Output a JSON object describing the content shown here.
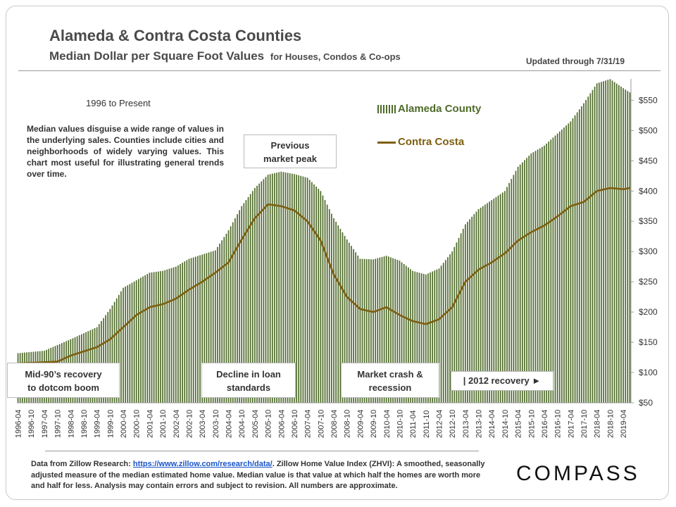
{
  "header": {
    "title": "Alameda & Contra Costa Counties",
    "subtitle": "Median Dollar per Square Foot Values",
    "subtitle_small": "for Houses, Condos & Co-ops",
    "updated": "Updated through 7/31/19"
  },
  "annotations": {
    "period": "1996 to Present",
    "note": "Median values disguise a wide range of values in the underlying sales. Counties include cities and neighborhoods of widely varying values.  This chart most useful for illustrating general trends over time.",
    "previous_peak": [
      "Previous",
      "market peak"
    ],
    "mid90s": [
      "Mid-90’s recovery",
      "to dotcom boom"
    ],
    "decline": [
      "Decline in loan",
      "standards"
    ],
    "crash": [
      "Market crash &",
      "recession"
    ],
    "recovery": "| 2012 recovery ►"
  },
  "footer": {
    "source_prefix": "Data from Zillow Research: ",
    "source_link": "https://www.zillow.com/research/data/",
    "source_rest": ". Zillow Home Value Index (ZHVI): A smoothed, seasonally adjusted measure of the median estimated home value. Median value is that value at which half the homes are worth more and half for less. Analysis may contain errors and subject to revision. All numbers are approximate.",
    "logo": "COMPASS"
  },
  "colors": {
    "alameda": "#4f6b2a",
    "contra_costa": "#7d5f0f",
    "text": "#333333"
  },
  "chart_data": {
    "type": "bar",
    "x_start": "1996-04",
    "x_end": "2019-07",
    "frequency": "monthly",
    "tick_labels": [
      "1996-04",
      "1996-10",
      "1997-04",
      "1997-10",
      "1998-04",
      "1998-10",
      "1999-04",
      "1999-10",
      "2000-04",
      "2000-10",
      "2001-04",
      "2001-10",
      "2002-04",
      "2002-10",
      "2003-04",
      "2003-10",
      "2004-04",
      "2004-10",
      "2005-04",
      "2005-10",
      "2006-04",
      "2006-10",
      "2007-04",
      "2007-10",
      "2008-04",
      "2008-10",
      "2009-04",
      "2009-10",
      "2010-04",
      "2010-10",
      "2011-04",
      "2011-10",
      "2012-04",
      "2012-10",
      "2013-04",
      "2013-10",
      "2014-04",
      "2014-10",
      "2015-04",
      "2015-10",
      "2016-04",
      "2016-10",
      "2017-04",
      "2017-10",
      "2018-04",
      "2018-10",
      "2019-04"
    ],
    "ylim": [
      50,
      590
    ],
    "yticks": [
      50,
      100,
      150,
      200,
      250,
      300,
      350,
      400,
      450,
      500,
      550
    ],
    "y_tick_format": "$",
    "legend_position": "top-right",
    "series": [
      {
        "name": "Alameda County",
        "type": "bar",
        "anchors": [
          [
            "1996-04",
            132
          ],
          [
            "1997-04",
            136
          ],
          [
            "1998-04",
            155
          ],
          [
            "1999-04",
            175
          ],
          [
            "1999-10",
            205
          ],
          [
            "2000-04",
            240
          ],
          [
            "2001-04",
            265
          ],
          [
            "2001-10",
            268
          ],
          [
            "2002-04",
            275
          ],
          [
            "2002-10",
            288
          ],
          [
            "2003-04",
            295
          ],
          [
            "2003-10",
            302
          ],
          [
            "2004-04",
            335
          ],
          [
            "2004-10",
            375
          ],
          [
            "2005-04",
            405
          ],
          [
            "2005-10",
            427
          ],
          [
            "2006-04",
            432
          ],
          [
            "2006-10",
            428
          ],
          [
            "2007-04",
            422
          ],
          [
            "2007-10",
            400
          ],
          [
            "2008-04",
            355
          ],
          [
            "2008-10",
            320
          ],
          [
            "2009-04",
            288
          ],
          [
            "2009-10",
            287
          ],
          [
            "2010-04",
            293
          ],
          [
            "2010-10",
            285
          ],
          [
            "2011-04",
            268
          ],
          [
            "2011-10",
            262
          ],
          [
            "2012-04",
            272
          ],
          [
            "2012-10",
            300
          ],
          [
            "2013-04",
            345
          ],
          [
            "2013-10",
            370
          ],
          [
            "2014-04",
            385
          ],
          [
            "2014-10",
            400
          ],
          [
            "2015-04",
            440
          ],
          [
            "2015-10",
            462
          ],
          [
            "2016-04",
            475
          ],
          [
            "2016-10",
            495
          ],
          [
            "2017-04",
            515
          ],
          [
            "2017-10",
            545
          ],
          [
            "2018-04",
            578
          ],
          [
            "2018-10",
            585
          ],
          [
            "2019-04",
            570
          ],
          [
            "2019-07",
            563
          ]
        ]
      },
      {
        "name": "Contra Costa",
        "type": "line",
        "anchors": [
          [
            "1996-04",
            115
          ],
          [
            "1997-04",
            117
          ],
          [
            "1997-10",
            118
          ],
          [
            "1998-04",
            128
          ],
          [
            "1998-10",
            135
          ],
          [
            "1999-04",
            142
          ],
          [
            "1999-10",
            155
          ],
          [
            "2000-04",
            175
          ],
          [
            "2000-10",
            195
          ],
          [
            "2001-04",
            208
          ],
          [
            "2001-10",
            213
          ],
          [
            "2002-04",
            222
          ],
          [
            "2002-10",
            237
          ],
          [
            "2003-04",
            250
          ],
          [
            "2003-10",
            265
          ],
          [
            "2004-04",
            282
          ],
          [
            "2004-10",
            320
          ],
          [
            "2005-04",
            355
          ],
          [
            "2005-10",
            378
          ],
          [
            "2006-04",
            375
          ],
          [
            "2006-10",
            368
          ],
          [
            "2007-04",
            350
          ],
          [
            "2007-10",
            318
          ],
          [
            "2008-04",
            262
          ],
          [
            "2008-10",
            225
          ],
          [
            "2009-04",
            205
          ],
          [
            "2009-10",
            200
          ],
          [
            "2010-04",
            208
          ],
          [
            "2010-10",
            195
          ],
          [
            "2011-04",
            185
          ],
          [
            "2011-10",
            180
          ],
          [
            "2012-04",
            188
          ],
          [
            "2012-10",
            208
          ],
          [
            "2013-04",
            250
          ],
          [
            "2013-10",
            270
          ],
          [
            "2014-04",
            282
          ],
          [
            "2014-10",
            297
          ],
          [
            "2015-04",
            318
          ],
          [
            "2015-10",
            332
          ],
          [
            "2016-04",
            343
          ],
          [
            "2016-10",
            358
          ],
          [
            "2017-04",
            375
          ],
          [
            "2017-10",
            382
          ],
          [
            "2018-04",
            400
          ],
          [
            "2018-10",
            405
          ],
          [
            "2019-04",
            403
          ],
          [
            "2019-07",
            405
          ]
        ]
      }
    ]
  }
}
